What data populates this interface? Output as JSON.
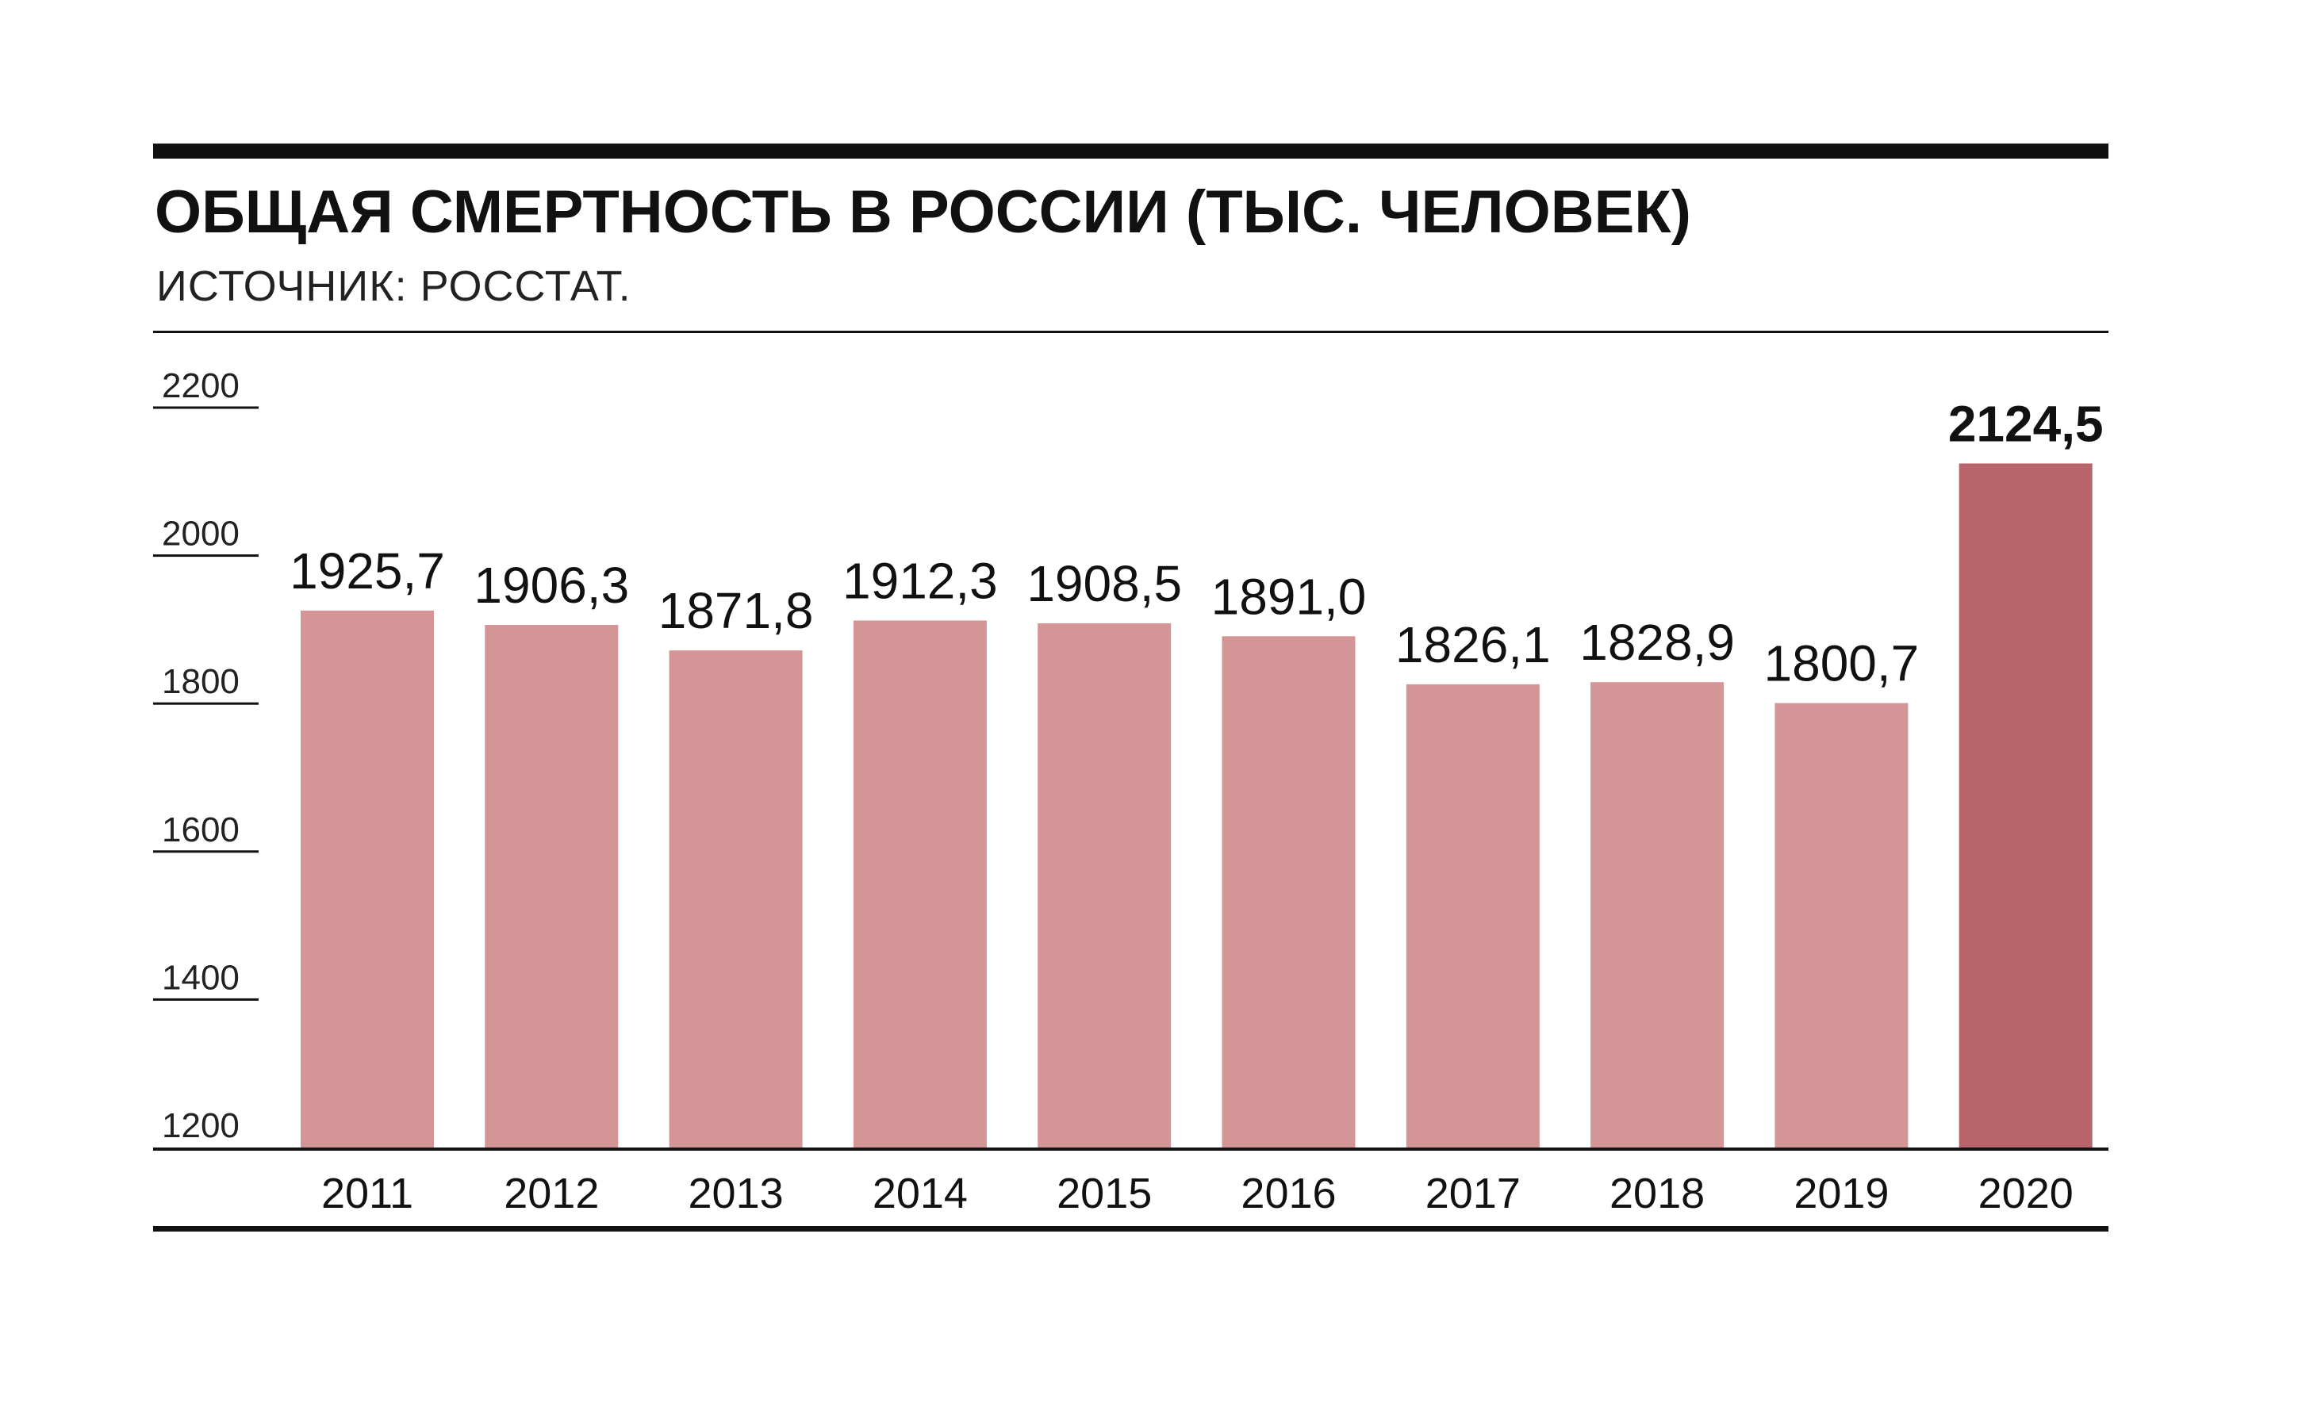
{
  "chart_data": {
    "type": "bar",
    "title": "ОБЩАЯ СМЕРТНОСТЬ В РОССИИ (ТЫС. ЧЕЛОВЕК)",
    "subtitle": "ИСТОЧНИК: РОССТАТ.",
    "categories": [
      "2011",
      "2012",
      "2013",
      "2014",
      "2015",
      "2016",
      "2017",
      "2018",
      "2019",
      "2020"
    ],
    "values": [
      1925.7,
      1906.3,
      1871.8,
      1912.3,
      1908.5,
      1891.0,
      1826.1,
      1828.9,
      1800.7,
      2124.5
    ],
    "value_labels": [
      "1925,7",
      "1906,3",
      "1871,8",
      "1912,3",
      "1908,5",
      "1891,0",
      "1826,1",
      "1828,9",
      "1800,7",
      "2124,5"
    ],
    "highlight_index": 9,
    "yticks": [
      2200,
      2000,
      1800,
      1600,
      1400,
      1200
    ],
    "ylim": [
      1200,
      2200
    ],
    "grid": false,
    "colors": {
      "bar": "#d49596",
      "highlight": "#b8646b",
      "rule": "#111111"
    }
  }
}
